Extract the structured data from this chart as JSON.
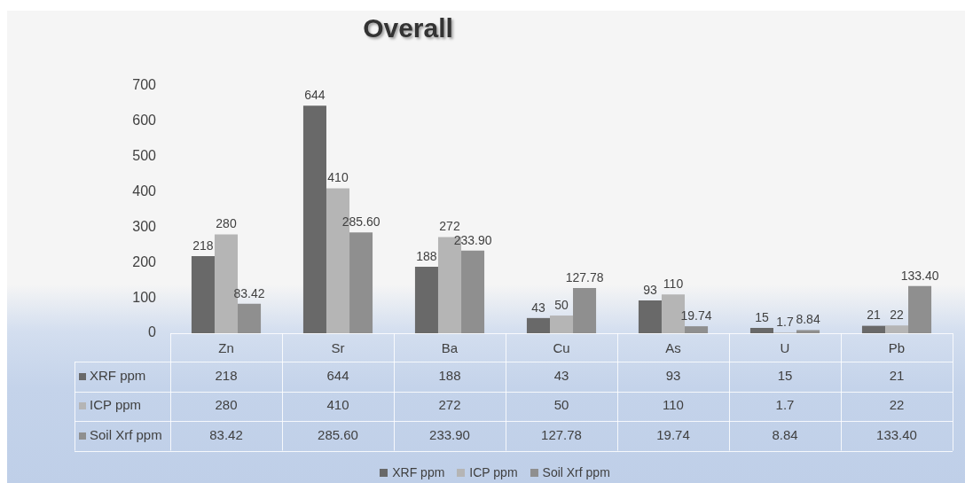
{
  "chart_data": {
    "type": "bar",
    "title": "Overall",
    "categories": [
      "Zn",
      "Sr",
      "Ba",
      "Cu",
      "As",
      "U",
      "Pb"
    ],
    "series": [
      {
        "name": "XRF ppm",
        "color": "#696969",
        "values": [
          218,
          644,
          188,
          43,
          93,
          15,
          21
        ],
        "value_labels": [
          "218",
          "644",
          "188",
          "43",
          "93",
          "15",
          "21"
        ]
      },
      {
        "name": "ICP ppm",
        "color": "#b5b5b5",
        "values": [
          280,
          410,
          272,
          50,
          110,
          1.7,
          22
        ],
        "value_labels": [
          "280",
          "410",
          "272",
          "50",
          "110",
          "1.7",
          "22"
        ]
      },
      {
        "name": "Soil Xrf ppm",
        "color": "#8f8f8f",
        "values": [
          83.42,
          285.6,
          233.9,
          127.78,
          19.74,
          8.84,
          133.4
        ],
        "value_labels": [
          "83.42",
          "285.60",
          "233.90",
          "127.78",
          "19.74",
          "8.84",
          "133.40"
        ]
      }
    ],
    "ylim": [
      0,
      700
    ],
    "yticks": [
      0,
      100,
      200,
      300,
      400,
      500,
      600,
      700
    ],
    "legend": "bottom"
  }
}
